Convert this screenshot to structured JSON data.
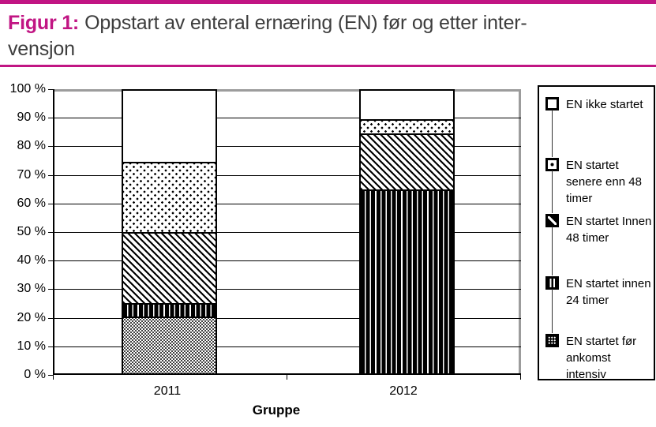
{
  "header": {
    "figure_label": "Figur 1:",
    "title_line1": "Oppstart av enteral ernæring (EN) før og etter inter-",
    "title_line2": "vensjon"
  },
  "chart_data": {
    "type": "bar",
    "stacked": true,
    "orientation": "vertical",
    "title": "Oppstart av enteral ernæring (EN) før og etter intervensjon",
    "categories": [
      "2011",
      "2012"
    ],
    "series": [
      {
        "name": "EN startet før ankomst intensiv",
        "pattern": "dense-dots",
        "values": [
          20,
          0
        ]
      },
      {
        "name": "EN startet innen 24 timer",
        "pattern": "vertical-lines",
        "values": [
          5,
          65
        ]
      },
      {
        "name": "EN startet Innen 48 timer",
        "pattern": "diagonal-hatch",
        "values": [
          25,
          20
        ]
      },
      {
        "name": "EN startet senere enn 48 timer",
        "pattern": "sparse-dots",
        "values": [
          25,
          5
        ]
      },
      {
        "name": "EN ikke startet",
        "pattern": "plain-white",
        "values": [
          25,
          10
        ]
      }
    ],
    "legend": [
      {
        "label": "EN ikke startet",
        "pattern": "plain-white"
      },
      {
        "label": "EN startet\nsenere enn 48\ntimer",
        "pattern": "sparse-dots"
      },
      {
        "label": "EN startet Innen\n48 timer",
        "pattern": "diagonal-hatch"
      },
      {
        "label": "EN startet innen\n24 timer",
        "pattern": "vertical-lines"
      },
      {
        "label": "EN startet før\nankomst\nintensiv",
        "pattern": "dense-dots"
      }
    ],
    "xlabel": "Gruppe",
    "ylabel": "",
    "ylim": [
      0,
      100
    ],
    "yticks": [
      {
        "value": 0,
        "label": "0 %"
      },
      {
        "value": 10,
        "label": "10 %"
      },
      {
        "value": 20,
        "label": "20 %"
      },
      {
        "value": 30,
        "label": "30 %"
      },
      {
        "value": 40,
        "label": "40 %"
      },
      {
        "value": 50,
        "label": "50 %"
      },
      {
        "value": 60,
        "label": "60 %"
      },
      {
        "value": 70,
        "label": "70 %"
      },
      {
        "value": 80,
        "label": "80 %"
      },
      {
        "value": 90,
        "label": "90 %"
      },
      {
        "value": 100,
        "label": "100 %"
      }
    ],
    "grid": "horizontal",
    "legend_position": "right"
  },
  "colors": {
    "accent_magenta": "#C11583",
    "plot_wall_gray": "#9C9C9C",
    "pattern_ink": "#000000",
    "title_text": "#3D3D3D"
  }
}
